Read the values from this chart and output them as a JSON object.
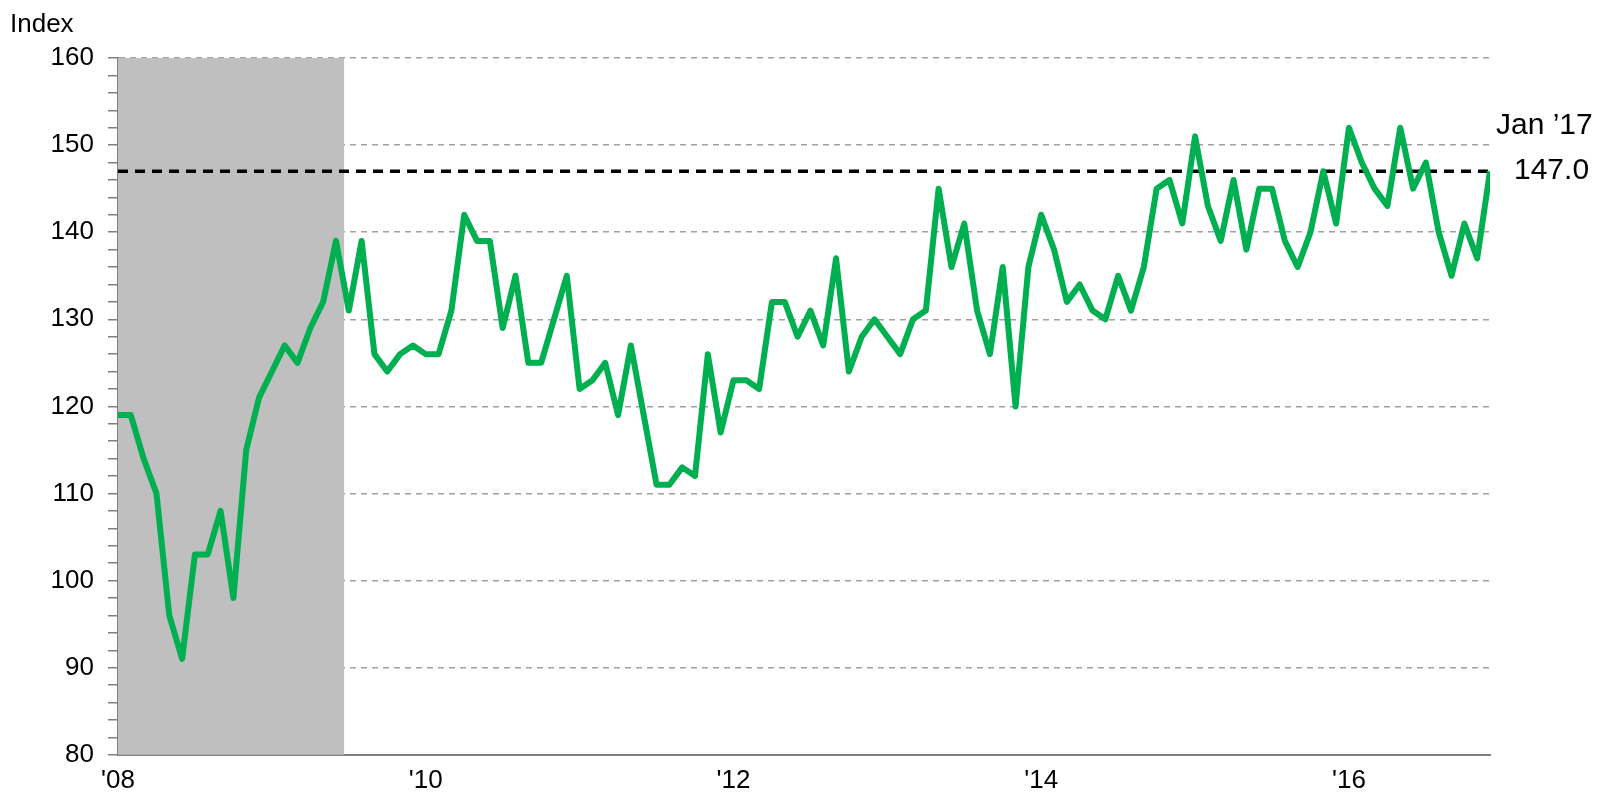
{
  "chart_data": {
    "type": "line",
    "ylabel": "Index",
    "x": [
      "2008-01",
      "2008-02",
      "2008-03",
      "2008-04",
      "2008-05",
      "2008-06",
      "2008-07",
      "2008-08",
      "2008-09",
      "2008-10",
      "2008-11",
      "2008-12",
      "2009-01",
      "2009-02",
      "2009-03",
      "2009-04",
      "2009-05",
      "2009-06",
      "2009-07",
      "2009-08",
      "2009-09",
      "2009-10",
      "2009-11",
      "2009-12",
      "2010-01",
      "2010-02",
      "2010-03",
      "2010-04",
      "2010-05",
      "2010-06",
      "2010-07",
      "2010-08",
      "2010-09",
      "2010-10",
      "2010-11",
      "2010-12",
      "2011-01",
      "2011-02",
      "2011-03",
      "2011-04",
      "2011-05",
      "2011-06",
      "2011-07",
      "2011-08",
      "2011-09",
      "2011-10",
      "2011-11",
      "2011-12",
      "2012-01",
      "2012-02",
      "2012-03",
      "2012-04",
      "2012-05",
      "2012-06",
      "2012-07",
      "2012-08",
      "2012-09",
      "2012-10",
      "2012-11",
      "2012-12",
      "2013-01",
      "2013-02",
      "2013-03",
      "2013-04",
      "2013-05",
      "2013-06",
      "2013-07",
      "2013-08",
      "2013-09",
      "2013-10",
      "2013-11",
      "2013-12",
      "2014-01",
      "2014-02",
      "2014-03",
      "2014-04",
      "2014-05",
      "2014-06",
      "2014-07",
      "2014-08",
      "2014-09",
      "2014-10",
      "2014-11",
      "2014-12",
      "2015-01",
      "2015-02",
      "2015-03",
      "2015-04",
      "2015-05",
      "2015-06",
      "2015-07",
      "2015-08",
      "2015-09",
      "2015-10",
      "2015-11",
      "2015-12",
      "2016-01",
      "2016-02",
      "2016-03",
      "2016-04",
      "2016-05",
      "2016-06",
      "2016-07",
      "2016-08",
      "2016-09",
      "2016-10",
      "2016-11",
      "2016-12"
    ],
    "series": [
      {
        "color": "#00b050",
        "values": [
          119,
          119,
          114,
          110,
          96,
          91,
          103,
          103,
          108,
          98,
          115,
          121,
          124,
          127,
          125,
          129,
          132,
          139,
          131,
          139,
          126,
          124,
          126,
          127,
          126,
          126,
          131,
          142,
          139,
          139,
          129,
          135,
          125,
          125,
          130,
          135,
          122,
          123,
          125,
          119,
          127,
          119,
          111,
          111,
          113,
          112,
          126,
          117,
          123,
          123,
          122,
          132,
          132,
          128,
          131,
          127,
          137,
          124,
          128,
          130,
          128,
          126,
          130,
          131,
          145,
          136,
          141,
          131,
          126,
          136,
          120,
          136,
          142,
          138,
          132,
          134,
          131,
          130,
          135,
          131,
          136,
          145,
          146,
          141,
          151,
          143,
          139,
          146,
          138,
          145,
          145,
          139,
          136,
          140,
          147,
          141,
          152,
          148,
          145,
          143,
          152,
          145,
          148,
          140,
          135,
          141,
          137,
          147
        ]
      }
    ],
    "xlim": [
      "2008-01",
      "2016-12"
    ],
    "xticks": [
      {
        "value": "2008-01",
        "label": "'08"
      },
      {
        "value": "2010-01",
        "label": "'10"
      },
      {
        "value": "2012-01",
        "label": "'12"
      },
      {
        "value": "2014-01",
        "label": "'14"
      },
      {
        "value": "2016-01",
        "label": "'16"
      }
    ],
    "ylim": [
      80,
      160
    ],
    "yticks": [
      80,
      {
        "value": 82,
        "label": null
      },
      {
        "value": 84,
        "label": null
      },
      {
        "value": 86,
        "label": null
      },
      {
        "value": 88,
        "label": null
      },
      90,
      {
        "value": 92,
        "label": null
      },
      {
        "value": 94,
        "label": null
      },
      {
        "value": 96,
        "label": null
      },
      {
        "value": 98,
        "label": null
      },
      100,
      {
        "value": 102,
        "label": null
      },
      {
        "value": 104,
        "label": null
      },
      {
        "value": 106,
        "label": null
      },
      {
        "value": 108,
        "label": null
      },
      110,
      {
        "value": 112,
        "label": null
      },
      {
        "value": 114,
        "label": null
      },
      {
        "value": 116,
        "label": null
      },
      {
        "value": 118,
        "label": null
      },
      120,
      {
        "value": 122,
        "label": null
      },
      {
        "value": 124,
        "label": null
      },
      {
        "value": 126,
        "label": null
      },
      {
        "value": 128,
        "label": null
      },
      130,
      {
        "value": 132,
        "label": null
      },
      {
        "value": 134,
        "label": null
      },
      {
        "value": 136,
        "label": null
      },
      {
        "value": 138,
        "label": null
      },
      140,
      {
        "value": 142,
        "label": null
      },
      {
        "value": 144,
        "label": null
      },
      {
        "value": 146,
        "label": null
      },
      {
        "value": 148,
        "label": null
      },
      150,
      {
        "value": 152,
        "label": null
      },
      {
        "value": 154,
        "label": null
      },
      {
        "value": 156,
        "label": null
      },
      {
        "value": 158,
        "label": null
      },
      160
    ],
    "grid": "y",
    "legend": false,
    "marker": "none",
    "line_style": "solid",
    "bands": [
      {
        "axis": "x",
        "from": "2008-01",
        "to": "2009-06-20",
        "color": "#bfbfbf"
      }
    ],
    "ref_lines": [
      {
        "axis": "y",
        "value": 147,
        "color": "#000000",
        "line_style": "dashed"
      }
    ],
    "annotations": [
      {
        "text": "Jan ’17",
        "x": "2016-12",
        "y": 147
      },
      {
        "text": "147.0",
        "x": "2016-12",
        "y": 147
      }
    ]
  }
}
